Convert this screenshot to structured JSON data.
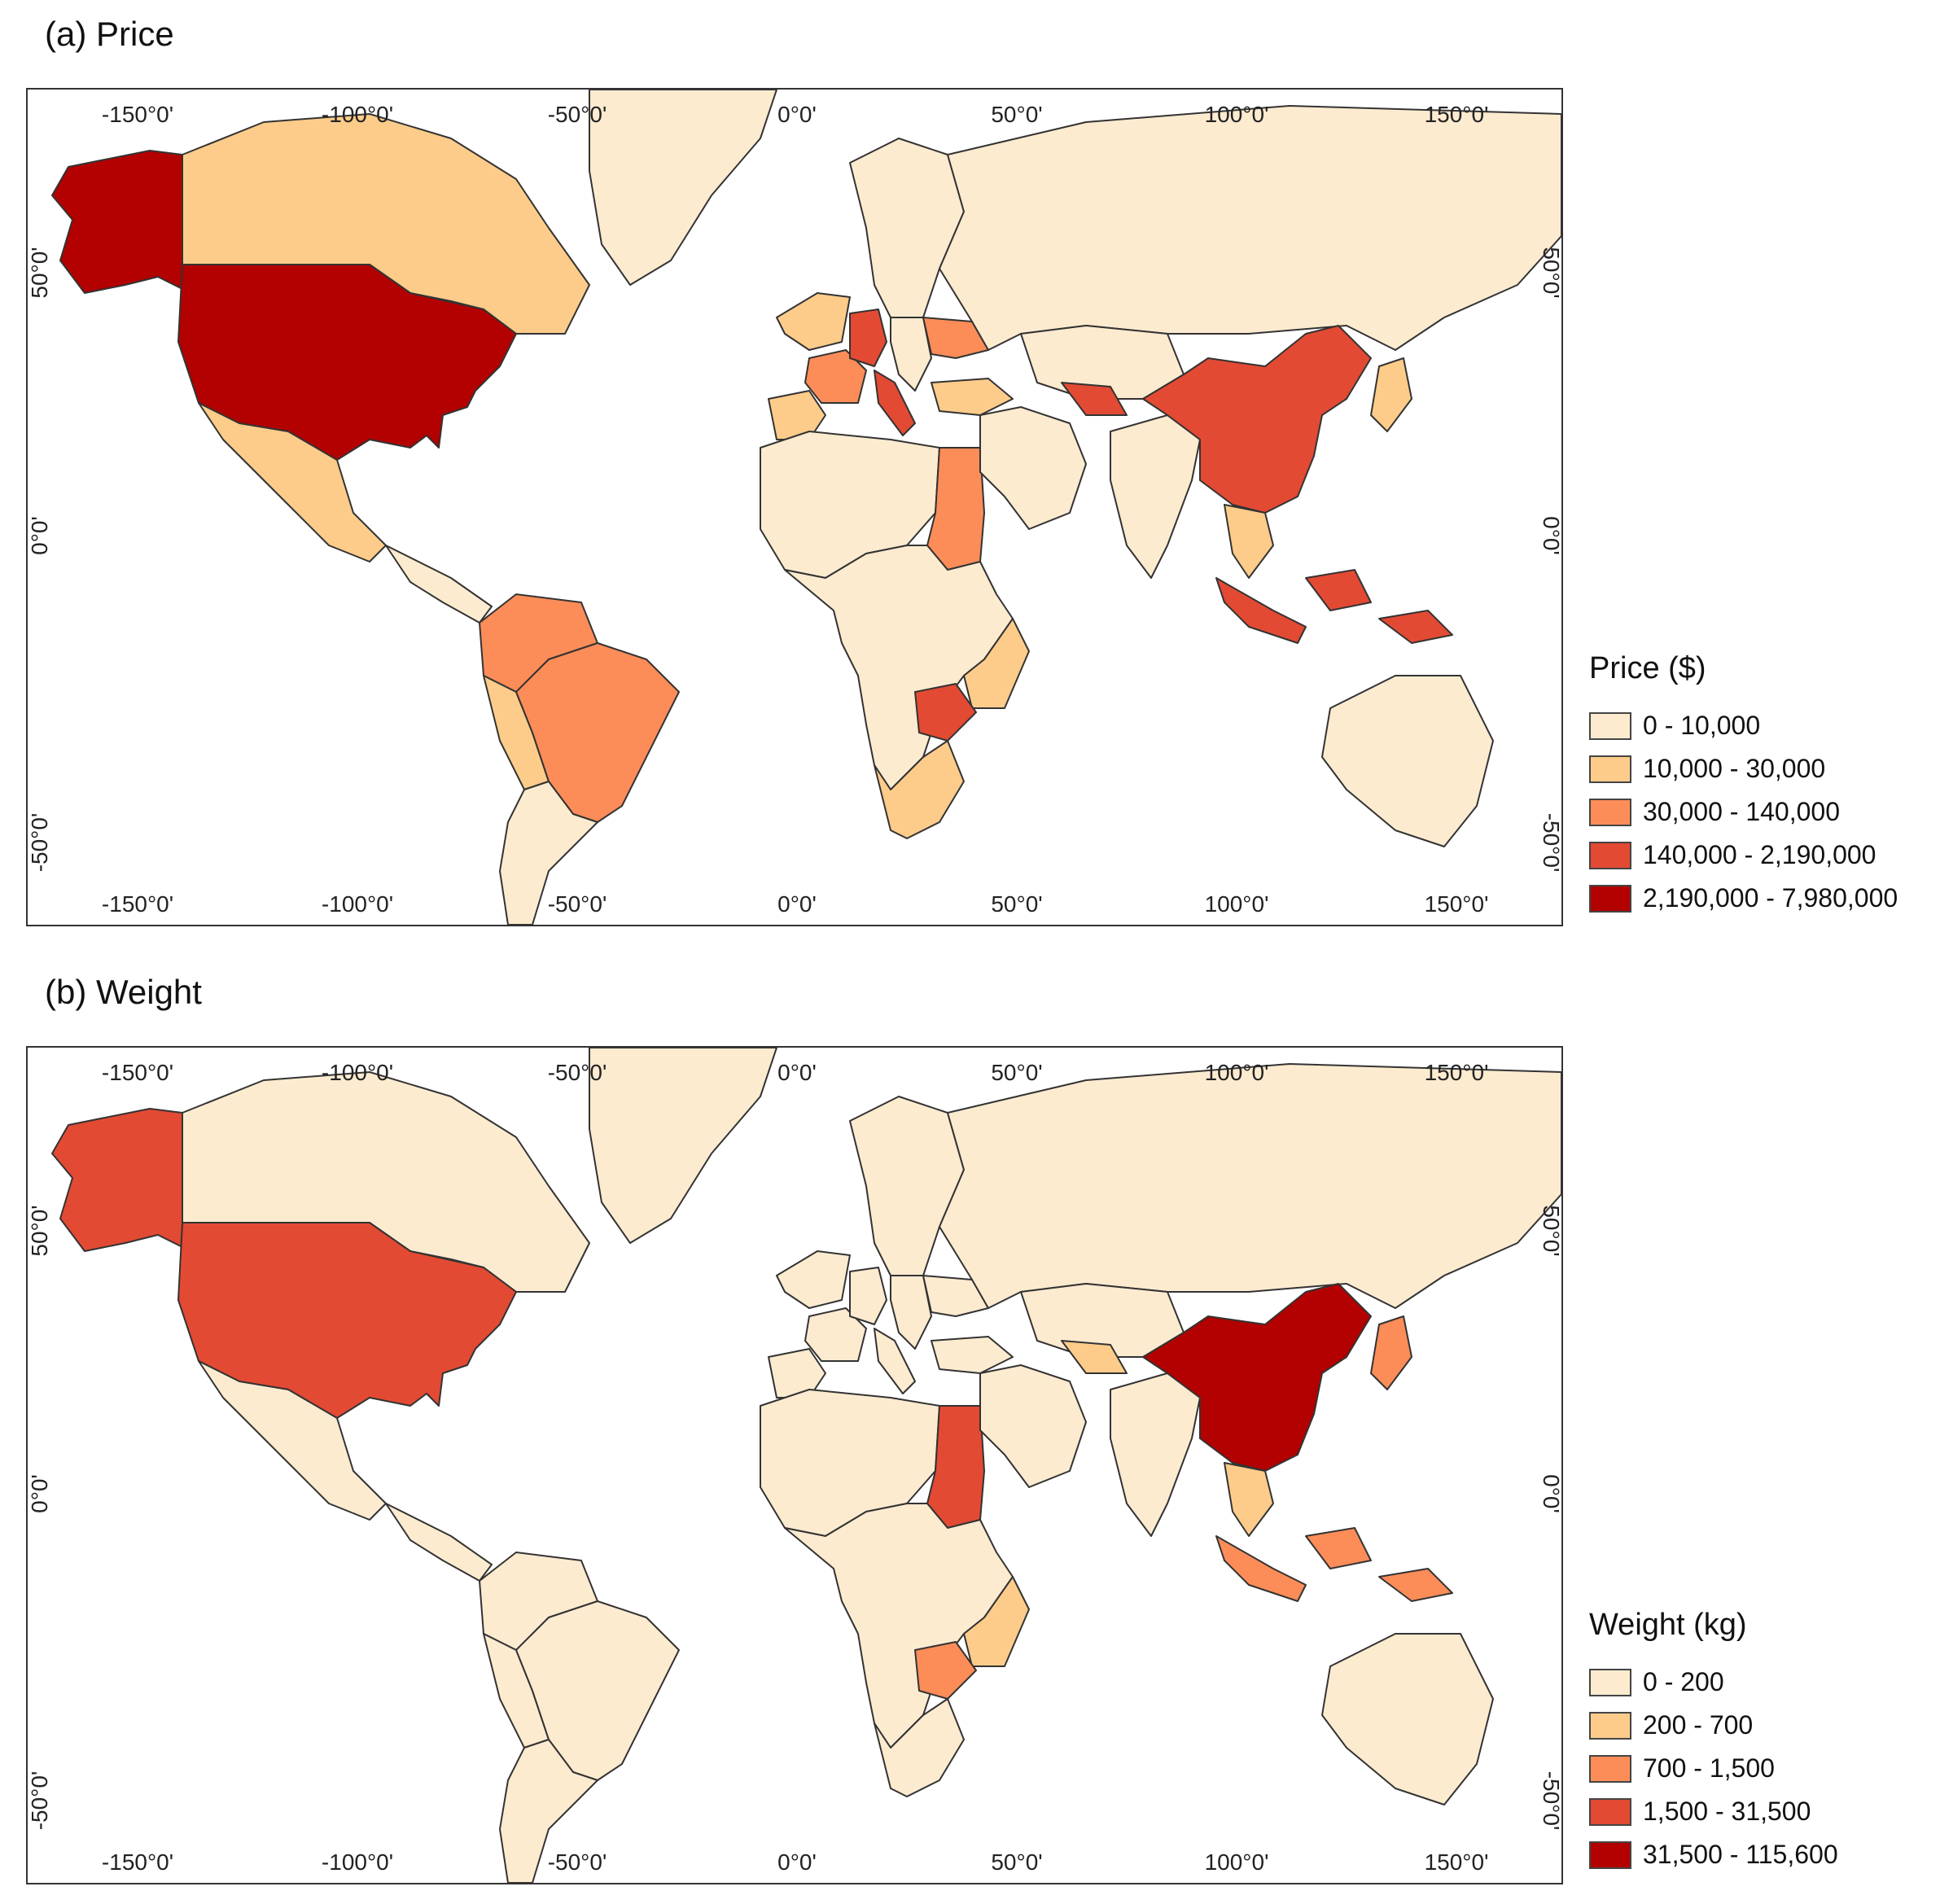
{
  "panels": [
    {
      "title": "(a) Price",
      "legend_title": "Price ($)",
      "classes": [
        {
          "label": "0 - 10,000",
          "color": "#fdebd0"
        },
        {
          "label": "10,000 - 30,000",
          "color": "#fdcc8a"
        },
        {
          "label": "30,000 - 140,000",
          "color": "#fc8d59"
        },
        {
          "label": "140,000 - 2,190,000",
          "color": "#e34a33"
        },
        {
          "label": "2,190,000 - 7,980,000",
          "color": "#b30000"
        }
      ],
      "x_ticks": [
        "-150°0'",
        "-100°0'",
        "-50°0'",
        "0°0'",
        "50°0'",
        "100°0'",
        "150°0'"
      ],
      "y_ticks": [
        "50°0'",
        "0°0'",
        "-50°0'"
      ],
      "regions": {
        "alaska": 4,
        "canada": 1,
        "usa": 4,
        "mexico": 1,
        "central_america": 0,
        "colombia_venezuela": 2,
        "brazil": 2,
        "south_america_rest": 0,
        "peru": 1,
        "greenland": 0,
        "russia": 0,
        "western_europe": 1,
        "france": 2,
        "germany": 3,
        "italy": 3,
        "eastern_europe": 0,
        "ukraine": 2,
        "turkey": 1,
        "north_africa": 0,
        "egypt_sudan": 2,
        "africa_rest": 0,
        "zambia": 3,
        "east_africa": 1,
        "south_africa": 1,
        "middle_east": 0,
        "central_asia": 0,
        "uzbekistan": 3,
        "india": 0,
        "china": 3,
        "japan": 1,
        "southeast_asia": 1,
        "indonesia": 3,
        "australia": 0
      }
    },
    {
      "title": "(b) Weight",
      "legend_title": "Weight (kg)",
      "classes": [
        {
          "label": "0 - 200",
          "color": "#fdebd0"
        },
        {
          "label": "200 - 700",
          "color": "#fdcc8a"
        },
        {
          "label": "700 - 1,500",
          "color": "#fc8d59"
        },
        {
          "label": "1,500 - 31,500",
          "color": "#e34a33"
        },
        {
          "label": "31,500 - 115,600",
          "color": "#b30000"
        }
      ],
      "x_ticks": [
        "-150°0'",
        "-100°0'",
        "-50°0'",
        "0°0'",
        "50°0'",
        "100°0'",
        "150°0'"
      ],
      "y_ticks": [
        "50°0'",
        "0°0'",
        "-50°0'"
      ],
      "regions": {
        "alaska": 3,
        "canada": 0,
        "usa": 3,
        "mexico": 0,
        "central_america": 0,
        "colombia_venezuela": 0,
        "brazil": 0,
        "south_america_rest": 0,
        "peru": 0,
        "greenland": 0,
        "russia": 0,
        "western_europe": 0,
        "france": 0,
        "germany": 0,
        "italy": 0,
        "eastern_europe": 0,
        "ukraine": 0,
        "turkey": 0,
        "north_africa": 0,
        "egypt_sudan": 3,
        "africa_rest": 0,
        "zambia": 2,
        "east_africa": 1,
        "south_africa": 0,
        "middle_east": 0,
        "central_asia": 0,
        "uzbekistan": 1,
        "india": 0,
        "china": 4,
        "japan": 2,
        "southeast_asia": 1,
        "indonesia": 2,
        "australia": 0
      }
    }
  ]
}
